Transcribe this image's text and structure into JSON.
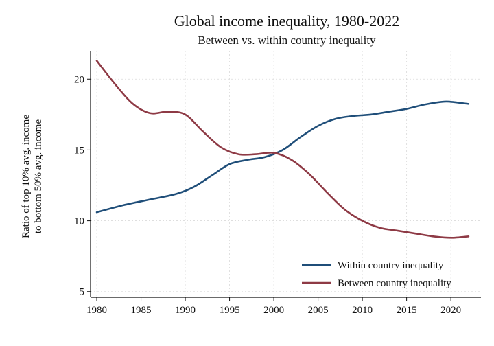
{
  "chart_data": {
    "type": "line",
    "title": "Global income inequality, 1980-2022",
    "subtitle": "Between vs. within country inequality",
    "xlabel": "",
    "ylabel_line1": "Ratio of top 10% avg. income",
    "ylabel_line2": "to bottom 50% avg. income",
    "xlim": [
      1979.3,
      2023.4
    ],
    "ylim": [
      4.6,
      22.0
    ],
    "x_ticks": [
      1980,
      1985,
      1990,
      1995,
      2000,
      2005,
      2010,
      2015,
      2020
    ],
    "y_ticks": [
      5,
      10,
      15,
      20
    ],
    "grid": true,
    "legend_position": "bottom-right",
    "series": [
      {
        "name": "Within country inequality",
        "color": "#1f4e79",
        "x": [
          1980,
          1983,
          1986,
          1989,
          1991,
          1993,
          1995,
          1997,
          1999,
          2001,
          2003,
          2005,
          2007,
          2009,
          2011,
          2013,
          2015,
          2017,
          2019,
          2020,
          2022
        ],
        "y": [
          10.6,
          11.1,
          11.5,
          11.9,
          12.4,
          13.2,
          14.0,
          14.3,
          14.5,
          15.0,
          15.9,
          16.7,
          17.2,
          17.4,
          17.5,
          17.7,
          17.9,
          18.2,
          18.4,
          18.4,
          18.25
        ]
      },
      {
        "name": "Between country inequality",
        "color": "#8e3a45",
        "x": [
          1980,
          1982,
          1984,
          1986,
          1988,
          1990,
          1992,
          1994,
          1996,
          1998,
          2000,
          2002,
          2004,
          2006,
          2008,
          2010,
          2012,
          2014,
          2016,
          2018,
          2020,
          2022
        ],
        "y": [
          21.3,
          19.7,
          18.3,
          17.6,
          17.7,
          17.5,
          16.3,
          15.2,
          14.7,
          14.7,
          14.8,
          14.3,
          13.3,
          12.0,
          10.8,
          10.0,
          9.5,
          9.3,
          9.1,
          8.9,
          8.8,
          8.9
        ]
      }
    ]
  }
}
